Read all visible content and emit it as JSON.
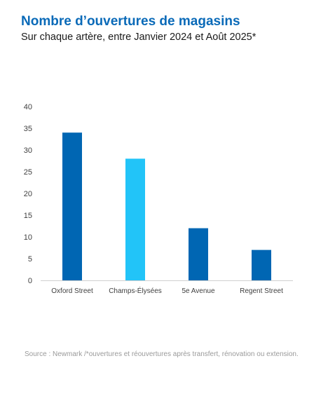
{
  "header": {
    "title": "Nombre d’ouvertures de magasins",
    "subtitle": "Sur chaque artère, entre Janvier 2024 et Août 2025*"
  },
  "footer": {
    "source": "Source : Newmark /*ouvertures et réouvertures après transfert, rénovation ou extension."
  },
  "chart_data": {
    "type": "bar",
    "title": "Nombre d’ouvertures de magasins",
    "subtitle": "Sur chaque artère, entre Janvier 2024 et Août 2025*",
    "categories": [
      "Oxford Street",
      "Champs-Élysées",
      "5e Avenue",
      "Regent Street"
    ],
    "values": [
      34,
      28,
      12,
      7
    ],
    "bar_colors": [
      "#0066b3",
      "#22c4f8",
      "#0066b3",
      "#0066b3"
    ],
    "ylim": [
      0,
      40
    ],
    "yticks": [
      0,
      5,
      10,
      15,
      20,
      25,
      30,
      35,
      40
    ],
    "grid": false,
    "legend": "none"
  }
}
